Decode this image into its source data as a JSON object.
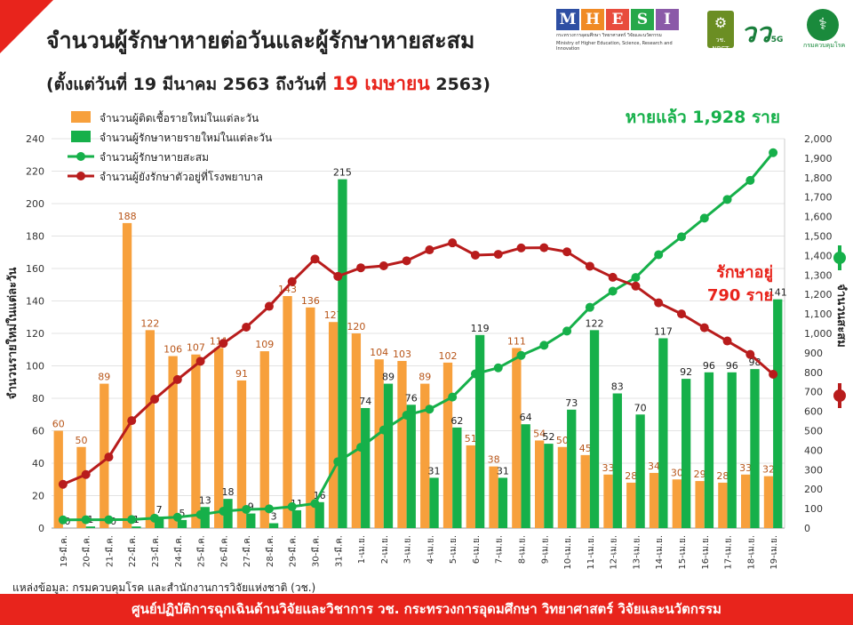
{
  "header": {
    "title": "จำนวนผู้รักษาหายต่อวันและผู้รักษาหายสะสม",
    "subtitle_prefix": "(ตั้งแต่วันที่ 19 มีนาคม 2563 ถึงวันที่",
    "subtitle_highlight": "19 เมษายน",
    "subtitle_suffix": "2563)"
  },
  "logos": {
    "mhesi_letters": [
      "M",
      "H",
      "E",
      "S",
      "I"
    ],
    "mhesi_colors": [
      "#2e4fa3",
      "#f08a24",
      "#e84c3d",
      "#27a84a",
      "#8b5aa8"
    ],
    "mhesi_sub": "กระทรวงการอุดมศึกษา วิทยาศาสตร์ วิจัยและนวัตกรรม",
    "mhesi_sub_en": "Ministry of Higher Education, Science, Research and Innovation",
    "nrct": "วช. NRCT",
    "logo_5g": "วว",
    "logo_5g_suffix": "5G",
    "ddc_caption": "กรมควบคุมโรค"
  },
  "source": "แหล่งข้อมูล: กรมควบคุมโรค และสำนักงานการวิจัยแห่งชาติ (วช.)",
  "footer": "ศูนย์ปฏิบัติการฉุกเฉินด้านวิจัยและวิชาการ    วช.   กระทรวงการอุดมศึกษา วิทยาศาสตร์ วิจัยและนวัตกรรม",
  "chart_data": {
    "type": "bar",
    "categories": [
      "19-มี.ค.",
      "20-มี.ค.",
      "21-มี.ค.",
      "22-มี.ค.",
      "23-มี.ค.",
      "24-มี.ค.",
      "25-มี.ค.",
      "26-มี.ค.",
      "27-มี.ค.",
      "28-มี.ค.",
      "29-มี.ค.",
      "30-มี.ค.",
      "31-มี.ค.",
      "1-เม.ย.",
      "2-เม.ย.",
      "3-เม.ย.",
      "4-เม.ย.",
      "5-เม.ย.",
      "6-เม.ย.",
      "7-เม.ย.",
      "8-เม.ย.",
      "9-เม.ย.",
      "10-เม.ย.",
      "11-เม.ย.",
      "12-เม.ย.",
      "13-เม.ย.",
      "14-เม.ย.",
      "15-เม.ย.",
      "16-เม.ย.",
      "17-เม.ย.",
      "18-เม.ย.",
      "19-เม.ย."
    ],
    "series": [
      {
        "name": "จำนวนผู้ติดเชื้อรายใหม่ในแต่ละวัน",
        "kind": "bar",
        "axis": "left",
        "color": "#f7a03c",
        "label_color": "#b8561a",
        "values": [
          60,
          50,
          89,
          188,
          122,
          106,
          107,
          111,
          91,
          109,
          143,
          136,
          127,
          120,
          104,
          103,
          89,
          102,
          51,
          38,
          111,
          54,
          50,
          45,
          33,
          28,
          34,
          30,
          29,
          28,
          33,
          32
        ]
      },
      {
        "name": "จำนวนผู้รักษาหายรายใหม่ในแต่ละวัน",
        "kind": "bar",
        "axis": "left",
        "color": "#16b04a",
        "label_color": "#222222",
        "values": [
          0,
          1,
          0,
          1,
          7,
          5,
          13,
          18,
          9,
          3,
          11,
          16,
          215,
          74,
          89,
          76,
          31,
          62,
          119,
          31,
          64,
          52,
          73,
          122,
          83,
          70,
          117,
          92,
          96,
          96,
          98,
          141
        ]
      },
      {
        "name": "จำนวนผู้รักษาหายสะสม",
        "kind": "line",
        "axis": "right",
        "color": "#16b04a",
        "values": [
          42,
          43,
          43,
          44,
          51,
          56,
          69,
          87,
          96,
          99,
          110,
          126,
          341,
          415,
          504,
          580,
          611,
          673,
          792,
          823,
          887,
          939,
          1012,
          1134,
          1217,
          1287,
          1404,
          1496,
          1592,
          1688,
          1786,
          1928
        ]
      },
      {
        "name": "จำนวนผู้ยังรักษาตัวอยู่ที่โรงพยาบาล",
        "kind": "line",
        "axis": "right",
        "color": "#b81c1c",
        "values": [
          225,
          275,
          365,
          552,
          662,
          763,
          857,
          949,
          1032,
          1139,
          1266,
          1382,
          1293,
          1337,
          1347,
          1373,
          1429,
          1465,
          1402,
          1406,
          1439,
          1440,
          1419,
          1345,
          1288,
          1243,
          1157,
          1100,
          1029,
          961,
          892,
          790
        ]
      }
    ],
    "left_axis": {
      "label": "จำนวนรายใหม่ในแต่ละวัน",
      "ylim": [
        0,
        240
      ],
      "ticks": [
        0,
        20,
        40,
        60,
        80,
        100,
        120,
        140,
        160,
        180,
        200,
        220,
        240
      ]
    },
    "right_axis": {
      "label": "จำนวนสะสม",
      "ylim": [
        0,
        2000
      ],
      "ticks": [
        0,
        100,
        200,
        300,
        400,
        500,
        600,
        700,
        800,
        900,
        1000,
        1100,
        1200,
        1300,
        1400,
        1500,
        1600,
        1700,
        1800,
        1900,
        2000
      ],
      "tick_labels": [
        "0",
        "100",
        "200",
        "300",
        "400",
        "500",
        "600",
        "700",
        "800",
        "900",
        "1,000",
        "1,100",
        "1,200",
        "1,300",
        "1,400",
        "1,500",
        "1,600",
        "1,700",
        "1,800",
        "1,900",
        "2,000"
      ]
    },
    "legend_position": "top-left",
    "annotations": {
      "recovered": "หายแล้ว 1,928 ราย",
      "treating_line1": "รักษาอยู่",
      "treating_line2": "790 ราย"
    }
  }
}
